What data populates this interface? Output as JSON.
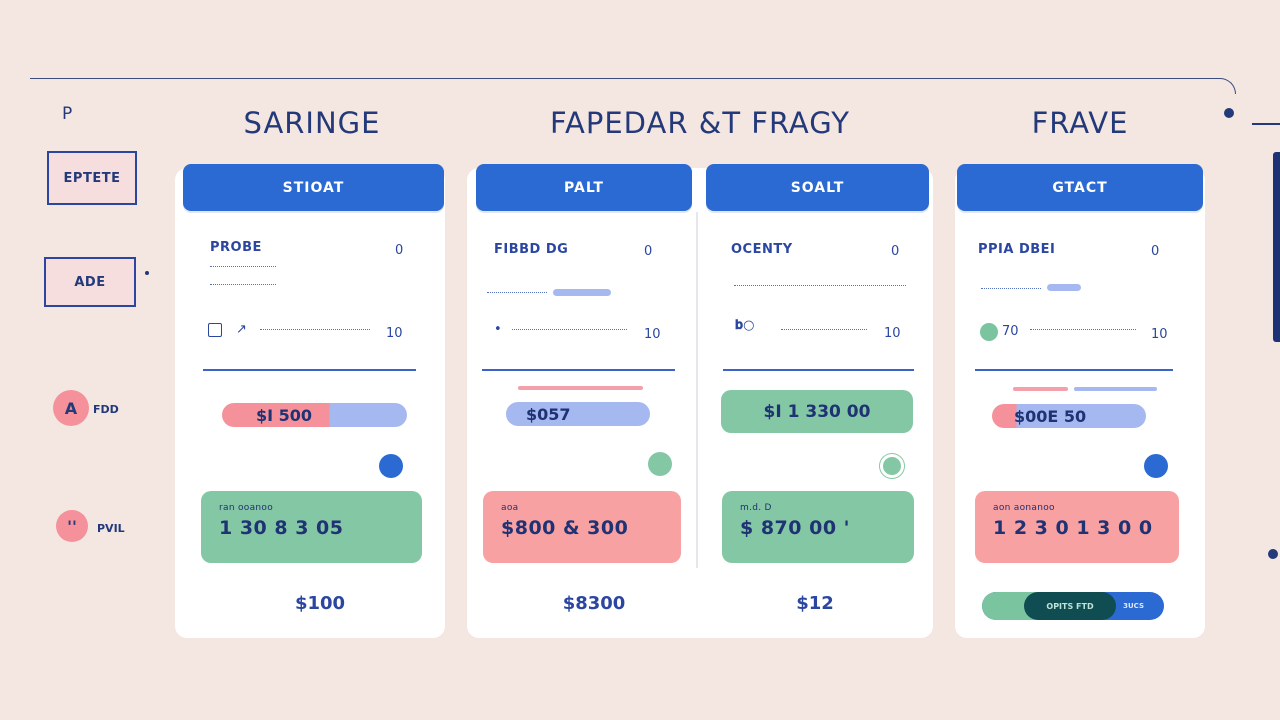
{
  "rail": {
    "top_letter": "P",
    "buttons": [
      "EPTETE",
      "ADE"
    ],
    "items": [
      {
        "icon_label": "A",
        "label": "FDD"
      },
      {
        "icon_label": "''",
        "label": "PVIL"
      }
    ]
  },
  "headings": [
    "SARINGE",
    "FAPEDAR &T FRAGY",
    "FRAVE"
  ],
  "cards": [
    {
      "header": "STIOAT",
      "title": "PROBE",
      "count": "0",
      "row_value": "10",
      "pill_value": "$I 500",
      "block_caption": "ran ooanoo",
      "block_value": "1 30 8 3 05",
      "price": "$100"
    },
    {
      "header": "PALT",
      "title": "FIBBD DG",
      "count": "0",
      "row_value": "10",
      "pill_value": "$057",
      "block_caption": "aoa",
      "block_value": "$800 & 300",
      "price": "$8300"
    },
    {
      "header": "SOALT",
      "title": "OCENTY",
      "count": "0",
      "row_value": "10",
      "pill_value": "$I 1 330 00",
      "block_caption": "m.d. D",
      "block_value": "$ 870 00 '",
      "price": "$12"
    },
    {
      "header": "GTACT",
      "title": "PPIA DBEI",
      "count": "0",
      "row_prefix": "70",
      "row_value": "10",
      "pill_value": "$00E 50",
      "block_caption": "aon aonanoo",
      "block_value": "1 2 3 0 1 3 0 0",
      "segmented": {
        "segment_label": "OPITS FTD",
        "tail_label": "3UCS"
      }
    }
  ],
  "colors": {
    "background": "#f4e6e0",
    "header_blue": "#2a6ad2",
    "navy": "#23397a",
    "green": "#7bc4a0",
    "pink": "#f4919a",
    "lavender": "#a6b8f0"
  }
}
